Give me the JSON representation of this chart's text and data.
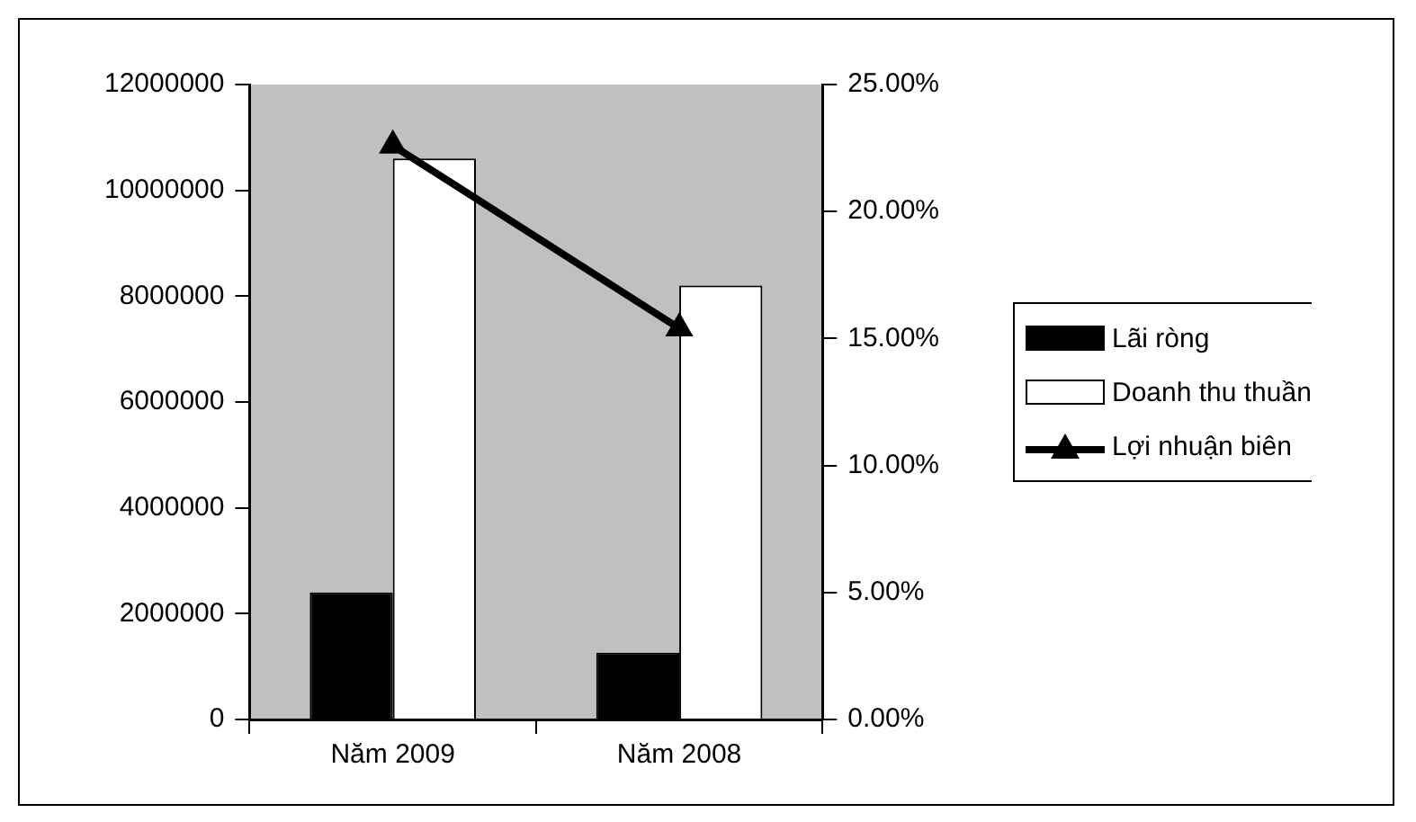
{
  "chart_data": {
    "type": "bar",
    "categories": [
      "Năm 2009",
      "Năm 2008"
    ],
    "series": [
      {
        "name": "Lãi ròng",
        "color": "#000000",
        "values": [
          2400000,
          1260000
        ]
      },
      {
        "name": "Doanh thu thuần",
        "color": "#ffffff",
        "values": [
          10600000,
          8200000
        ]
      },
      {
        "name": "Lợi nhuận biên",
        "type": "line",
        "axis": "y2",
        "color": "#000000",
        "values": [
          22.6,
          15.4
        ]
      }
    ],
    "ylim": [
      0,
      12000000
    ],
    "yticks": [
      0,
      2000000,
      4000000,
      6000000,
      8000000,
      10000000,
      12000000
    ],
    "y2lim": [
      0,
      25
    ],
    "y2ticks": [
      {
        "value": 0,
        "label": "0.00%"
      },
      {
        "value": 5,
        "label": "5.00%"
      },
      {
        "value": 10,
        "label": "10.00%"
      },
      {
        "value": 15,
        "label": "15.00%"
      },
      {
        "value": 20,
        "label": "20.00%"
      },
      {
        "value": 25,
        "label": "25.00%"
      }
    ],
    "grid": false,
    "legend": "right",
    "marker": "triangle"
  }
}
